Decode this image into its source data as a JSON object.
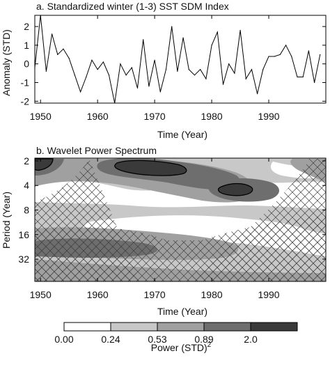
{
  "chart_data": [
    {
      "type": "line",
      "title": "a. Standardized winter (1-3) SST SDM Index",
      "xlabel": "Time (Year)",
      "ylabel": "Anomaly (STD)",
      "xlim": [
        1949,
        2000
      ],
      "ylim": [
        -2.1,
        2.6
      ],
      "xticks": [
        1950,
        1960,
        1970,
        1980,
        1990
      ],
      "yticks": [
        -2,
        -1,
        0,
        1,
        2
      ],
      "x": [
        1949,
        1950,
        1951,
        1952,
        1953,
        1954,
        1955,
        1956,
        1957,
        1958,
        1959,
        1960,
        1961,
        1962,
        1963,
        1964,
        1965,
        1966,
        1967,
        1968,
        1969,
        1970,
        1971,
        1972,
        1973,
        1974,
        1975,
        1976,
        1977,
        1978,
        1979,
        1980,
        1981,
        1982,
        1983,
        1984,
        1985,
        1986,
        1987,
        1988,
        1989,
        1990,
        1991,
        1992,
        1993,
        1994,
        1995,
        1996,
        1997,
        1998,
        1999
      ],
      "series": [
        {
          "values": [
            -0.2,
            2.6,
            -0.4,
            1.6,
            0.5,
            0.8,
            0.3,
            -0.6,
            -1.5,
            -0.7,
            0.2,
            -0.3,
            0.1,
            -0.6,
            -2.1,
            0.0,
            -0.6,
            -0.2,
            -1.3,
            1.3,
            -1.2,
            0.2,
            -1.5,
            -0.3,
            2.0,
            -0.4,
            1.4,
            -0.3,
            -0.6,
            -0.3,
            -0.8,
            1.0,
            1.7,
            -1.1,
            0.0,
            -0.5,
            1.8,
            -0.8,
            -0.3,
            -1.6,
            -0.3,
            0.4,
            0.4,
            0.5,
            1.0,
            0.4,
            -0.7,
            -0.7,
            0.7,
            -1.0,
            0.5
          ]
        }
      ]
    },
    {
      "type": "heatmap",
      "title": "b. Wavelet Power Spectrum",
      "xlabel": "Time (Year)",
      "ylabel": "Period (Year)",
      "xlim": [
        1949,
        2000
      ],
      "xticks": [
        1950,
        1960,
        1970,
        1980,
        1990
      ],
      "yticks": [
        2,
        4,
        8,
        16,
        32
      ],
      "yscale": "log2",
      "y_inverted": true,
      "colorbar": {
        "label": "Power (STD)",
        "label_sup": "2",
        "levels": [
          "0.00",
          "0.24",
          "0.53",
          "0.89",
          "2.0"
        ],
        "colors": [
          "#ffffff",
          "#c8c8c8",
          "#a0a0a0",
          "#6e6e6e",
          "#3a3a3a"
        ]
      }
    }
  ]
}
